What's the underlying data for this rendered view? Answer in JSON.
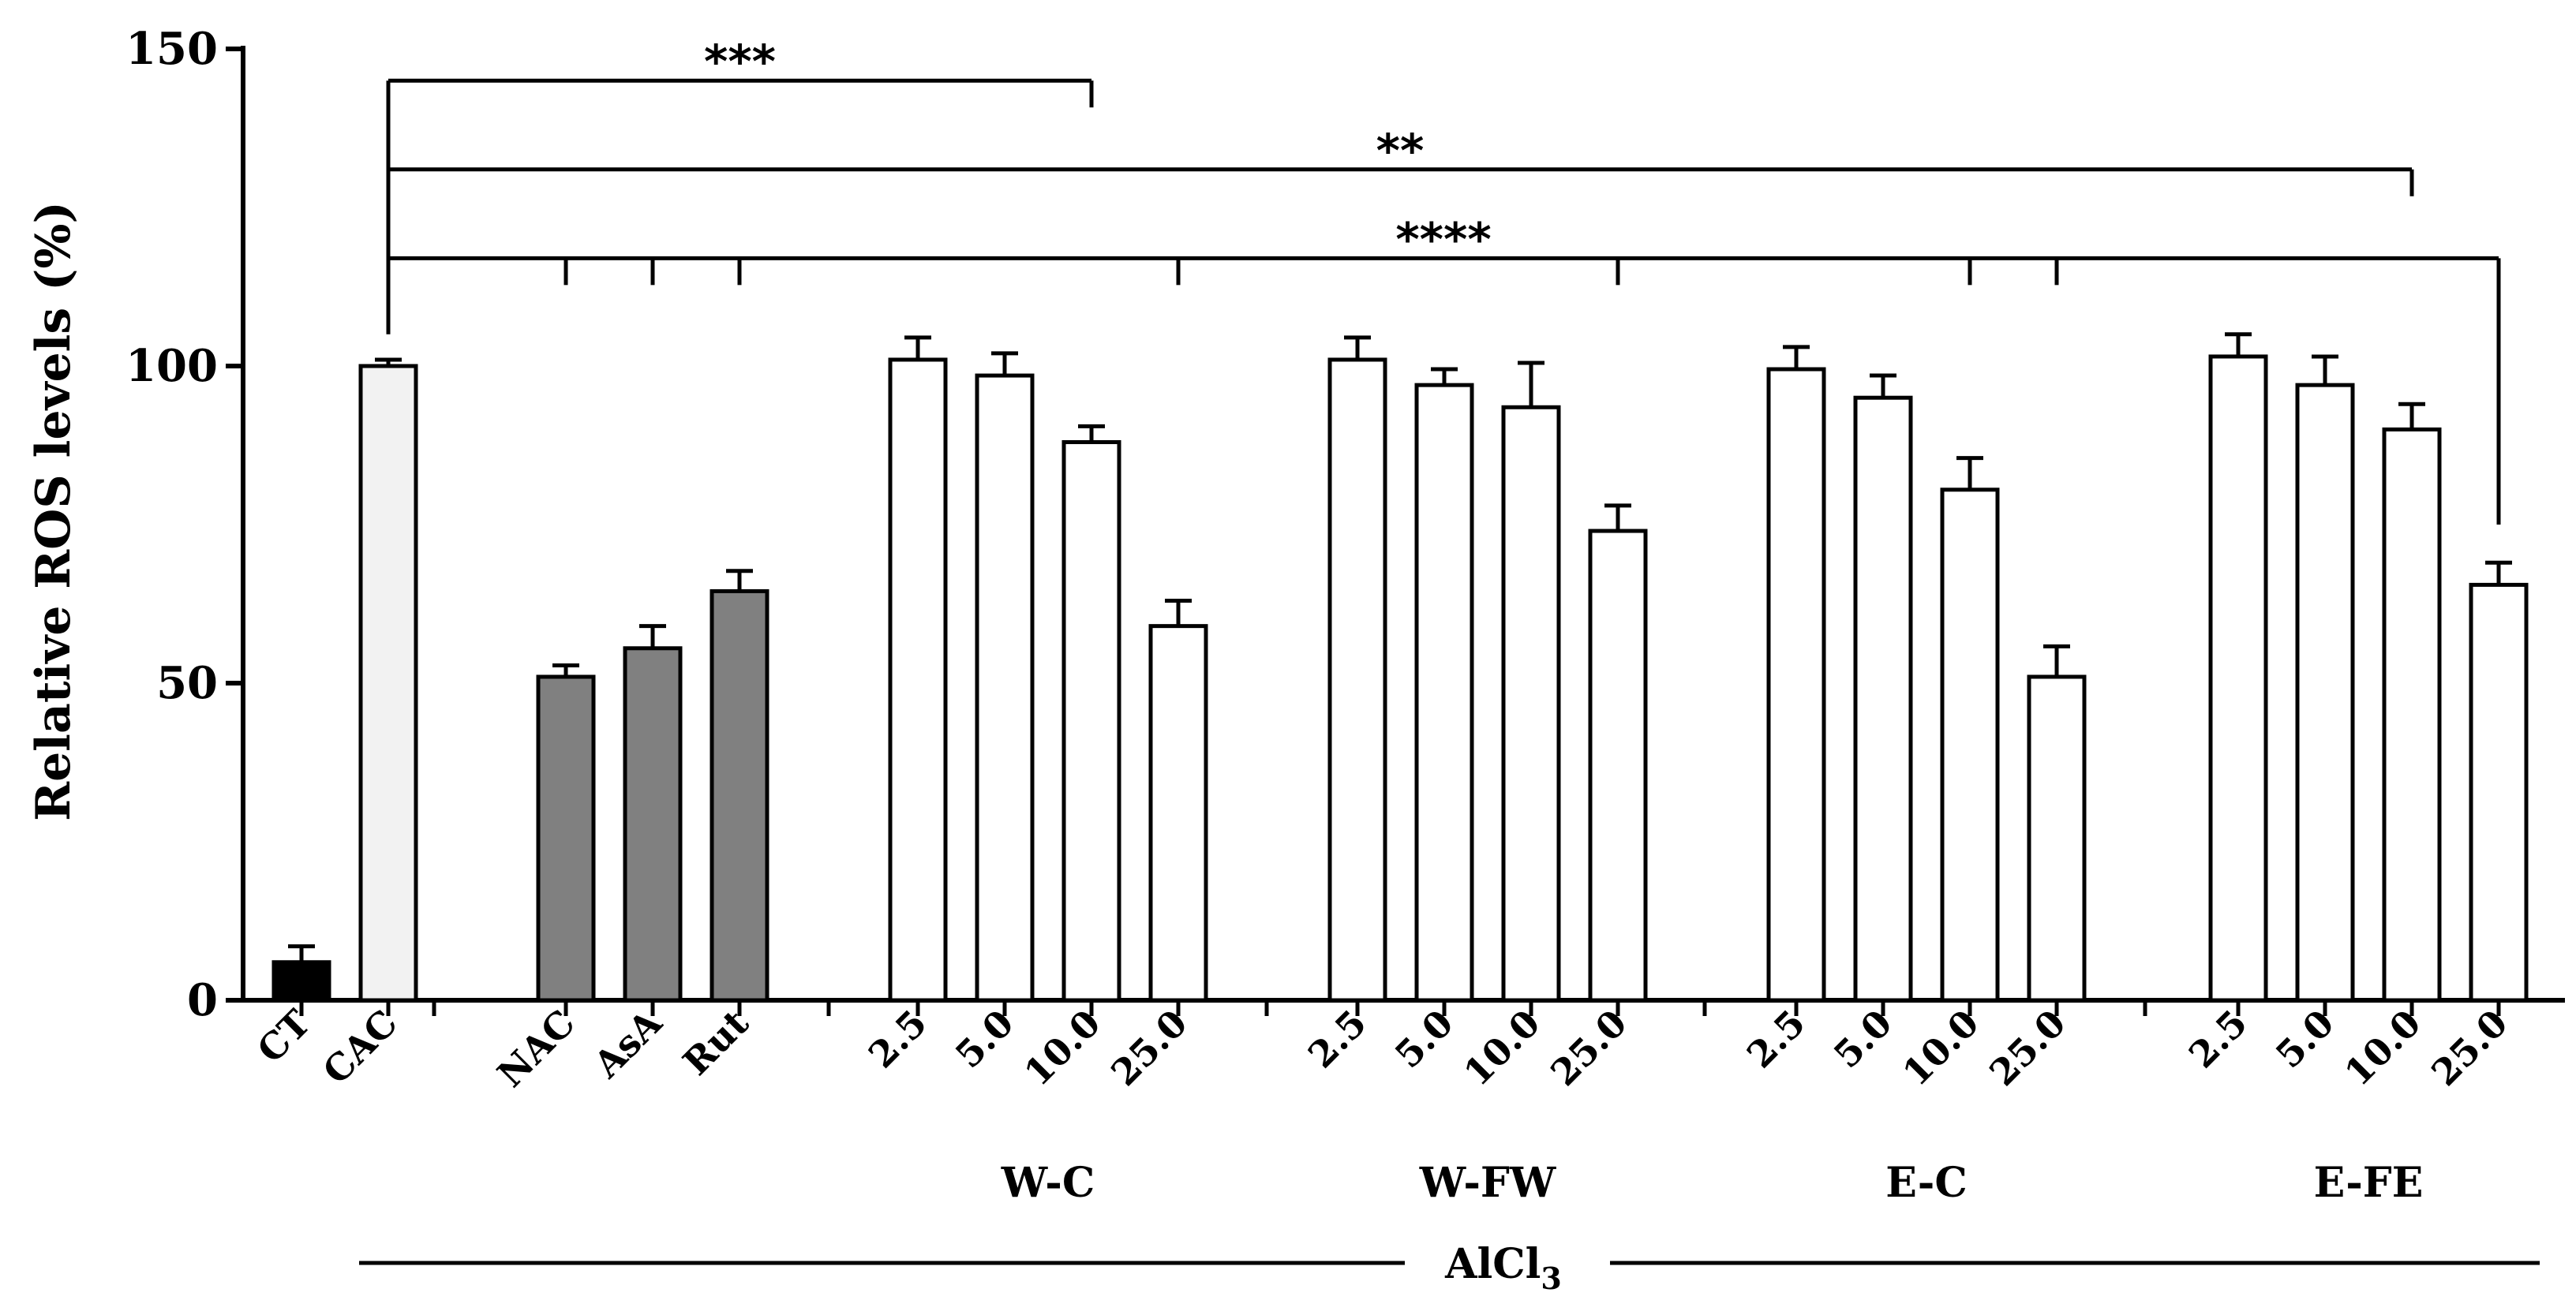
{
  "chart_data": {
    "type": "bar",
    "title": "",
    "xlabel": "",
    "ylabel": "Relative ROS levels (%)",
    "ylim": [
      0,
      150
    ],
    "yticks": [
      "0",
      "50",
      "100",
      "150"
    ],
    "grid": false,
    "categories": [
      "CT",
      "CAC",
      "NAC",
      "AsA",
      "Rut",
      "2.5",
      "5.0",
      "10.0",
      "25.0",
      "2.5",
      "5.0",
      "10.0",
      "25.0",
      "2.5",
      "5.0",
      "10.0",
      "25.0",
      "2.5",
      "5.0",
      "10.0",
      "25.0"
    ],
    "values": [
      6,
      100,
      51,
      55.5,
      64.5,
      101,
      98.5,
      88,
      59,
      101,
      97,
      93.5,
      74,
      99.5,
      95,
      80.5,
      51,
      101.5,
      97,
      90,
      65.5
    ],
    "errors": [
      2.5,
      1,
      1.8,
      3.5,
      3.2,
      3.5,
      3.5,
      2.5,
      4,
      3.5,
      2.5,
      7,
      4,
      3.5,
      3.5,
      5,
      4.8,
      3.5,
      4.5,
      4,
      3.5
    ],
    "fills": [
      "#000000",
      "#f2f2f2",
      "#808080",
      "#808080",
      "#808080",
      "#ffffff",
      "#ffffff",
      "#ffffff",
      "#ffffff",
      "#ffffff",
      "#ffffff",
      "#ffffff",
      "#ffffff",
      "#ffffff",
      "#ffffff",
      "#ffffff",
      "#ffffff",
      "#ffffff",
      "#ffffff",
      "#ffffff",
      "#ffffff"
    ],
    "groups": [
      {
        "label": "W-C",
        "members": [
          5,
          6,
          7,
          8
        ]
      },
      {
        "label": "W-FW",
        "members": [
          9,
          10,
          11,
          12
        ]
      },
      {
        "label": "E-C",
        "members": [
          13,
          14,
          15,
          16
        ]
      },
      {
        "label": "E-FE",
        "members": [
          17,
          18,
          19,
          20
        ]
      }
    ],
    "treatment_label": {
      "main": "AlCl",
      "subscript": "3"
    },
    "significance": [
      {
        "stars": "***",
        "level": 145,
        "from": 1,
        "drops": [
          7
        ]
      },
      {
        "stars": "**",
        "level": 131,
        "from": 1,
        "drops": [
          19
        ]
      },
      {
        "stars": "****",
        "level": 117,
        "from": 1,
        "drops": [
          2,
          3,
          4,
          8,
          12,
          15,
          16,
          20
        ]
      }
    ]
  }
}
